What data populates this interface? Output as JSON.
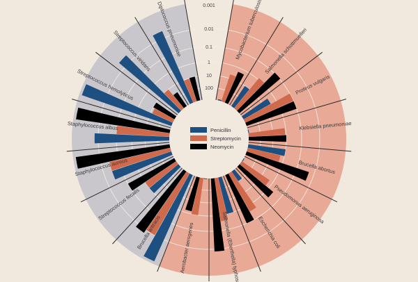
{
  "chart_data": {
    "type": "radial-bar",
    "title": "",
    "scale_label": "Minimum inhibitory concentration",
    "ticks": [
      "0.001",
      "0.01",
      "0.1",
      "1",
      "10",
      "100"
    ],
    "legend": [
      {
        "name": "Penicillin",
        "color": "#1d4f80"
      },
      {
        "name": "Streptomycin",
        "color": "#d06a4d"
      },
      {
        "name": "Neomycin",
        "color": "#000000"
      }
    ],
    "gram_colors": {
      "negative": "#e8a996",
      "positive": "#c9c7cc"
    },
    "categories": [
      "Mycobacterium tuberculosis",
      "Salmonella schottmuelleri",
      "Proteus vulgaris",
      "Klebsiella pneumoniae",
      "Brucella abortus",
      "Pseudomonas aeruginosa",
      "Escherichia coli",
      "Salmonella (Eberthella) typhosa",
      "Aerobacter aerogenes",
      "Brucella antracis",
      "Streptococcus fecalis",
      "Staphylococcus aureus",
      "Staphylococcus albus",
      "Streptococcus hemolyticus",
      "Streptococcus viridans",
      "Diplococcus pneumoniae"
    ],
    "gram": [
      "negative",
      "negative",
      "negative",
      "negative",
      "negative",
      "negative",
      "negative",
      "negative",
      "negative",
      "positive",
      "positive",
      "positive",
      "positive",
      "positive",
      "positive",
      "positive"
    ],
    "series": [
      {
        "name": "Penicillin",
        "values": [
          800,
          10,
          3,
          850,
          1,
          850,
          100,
          1,
          870,
          0.001,
          1,
          0.03,
          0.007,
          0.001,
          0.005,
          0.005
        ]
      },
      {
        "name": "Streptomycin",
        "values": [
          5,
          0.8,
          0.1,
          1.2,
          2,
          2,
          0.4,
          0.4,
          1,
          0.01,
          1,
          0.03,
          0.1,
          14,
          10,
          11
        ]
      },
      {
        "name": "Neomycin",
        "values": [
          2,
          0.09,
          0.1,
          1,
          0.02,
          0.4,
          0.1,
          0.008,
          1.6,
          0.007,
          0.1,
          0.001,
          0.001,
          10,
          40,
          10
        ]
      }
    ]
  },
  "labels": {
    "legend_penicillin": "Penicillin",
    "legend_streptomycin": "Streptomycin",
    "legend_neomycin": "Neomycin"
  }
}
